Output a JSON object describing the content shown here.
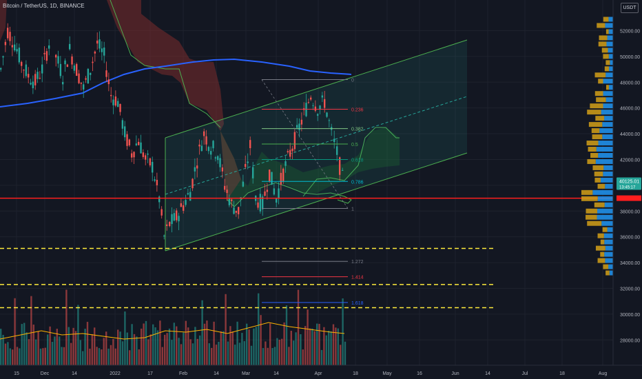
{
  "header": {
    "title": "Bitcoin / TetherUS, 1D, BINANCE",
    "currency_badge": "USDT"
  },
  "colors": {
    "background": "#131722",
    "up": "#26a69a",
    "down": "#ef5350",
    "ma_line": "#2962ff",
    "support_line": "#ffeb3b",
    "key_level": "#ff1e1e",
    "channel": "#4caf50",
    "ichimoku_red": "#7b2b2b",
    "ichimoku_green": "#1b5e20",
    "volume_ma": "#ffb300",
    "profile_blue": "#2196f3",
    "profile_orange": "#d4a017"
  },
  "chart_data": {
    "type": "candlestick",
    "x_ticks": [
      "15",
      "Dec",
      "14",
      "2022",
      "17",
      "Feb",
      "14",
      "Mar",
      "14",
      "Apr",
      "18",
      "May",
      "16",
      "Jun",
      "14",
      "Jul",
      "18",
      "Aug"
    ],
    "y_ticks": [
      "52000.00",
      "50000.00",
      "48000.00",
      "46000.00",
      "44000.00",
      "42000.00",
      "40000.00",
      "38000.00",
      "36000.00",
      "34000.00",
      "32000.00",
      "30000.00",
      "28000.00"
    ],
    "y_range": [
      27000,
      53200
    ],
    "current_price_label": "40125.01",
    "current_price_sublabel": "13:45:17",
    "current_price": 40125,
    "key_level": 39000,
    "support_levels": [
      35100,
      32300,
      30500
    ],
    "fib_levels": [
      {
        "label": "0",
        "price": 48200
      },
      {
        "label": "0.236",
        "price": 45900
      },
      {
        "label": "0.382",
        "price": 44400
      },
      {
        "label": "0.5",
        "price": 43200
      },
      {
        "label": "0.618",
        "price": 42000
      },
      {
        "label": "0.786",
        "price": 40300
      },
      {
        "label": "1",
        "price": 38200
      },
      {
        "label": "1.272",
        "price": 34100
      },
      {
        "label": "1.414",
        "price": 32900
      },
      {
        "label": "1.618",
        "price": 30900
      }
    ]
  }
}
